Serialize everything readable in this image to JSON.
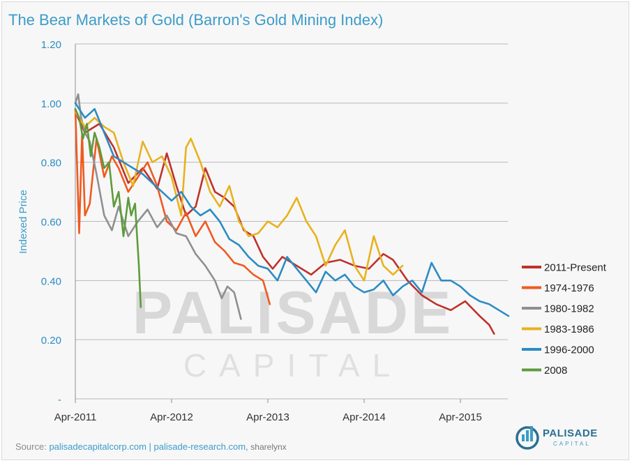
{
  "chart_data": {
    "type": "line",
    "title": "The Bear Markets of Gold (Barron's Gold Mining Index)",
    "ylabel": "Indexed Price",
    "xlabel": "",
    "ylim": [
      0,
      1.2
    ],
    "xlim": [
      0,
      4.6
    ],
    "y_ticks": [
      "1.20",
      "1.00",
      "0.80",
      "0.60",
      "0.40",
      "0.20",
      "-"
    ],
    "y_tick_values": [
      1.2,
      1.0,
      0.8,
      0.6,
      0.4,
      0.2,
      0.0
    ],
    "x_ticks": [
      "Apr-2011",
      "Apr-2012",
      "Apr-2013",
      "Apr-2014",
      "Apr-2015"
    ],
    "x_tick_values": [
      0,
      1,
      2,
      3,
      4
    ],
    "legend_position": "right",
    "watermark": "PALISADE CAPITAL",
    "series": [
      {
        "name": "2011-Present",
        "color": "#c0312b",
        "x": [
          0,
          0.1,
          0.25,
          0.4,
          0.55,
          0.7,
          0.85,
          0.95,
          1.05,
          1.15,
          1.25,
          1.35,
          1.45,
          1.55,
          1.65,
          1.75,
          1.85,
          1.95,
          2.05,
          2.15,
          2.3,
          2.45,
          2.6,
          2.75,
          2.9,
          3.05,
          3.2,
          3.3,
          3.45,
          3.6,
          3.75,
          3.9,
          4.05,
          4.2,
          4.3,
          4.35
        ],
        "y": [
          0.97,
          0.9,
          0.93,
          0.85,
          0.73,
          0.78,
          0.71,
          0.83,
          0.72,
          0.62,
          0.65,
          0.78,
          0.7,
          0.68,
          0.65,
          0.57,
          0.55,
          0.48,
          0.44,
          0.48,
          0.45,
          0.42,
          0.46,
          0.47,
          0.45,
          0.44,
          0.49,
          0.47,
          0.4,
          0.35,
          0.32,
          0.3,
          0.33,
          0.28,
          0.25,
          0.22
        ]
      },
      {
        "name": "1974-1976",
        "color": "#ef5a1f",
        "x": [
          0,
          0.04,
          0.07,
          0.1,
          0.15,
          0.22,
          0.3,
          0.38,
          0.45,
          0.55,
          0.65,
          0.75,
          0.85,
          0.95,
          1.05,
          1.15,
          1.25,
          1.35,
          1.45,
          1.55,
          1.65,
          1.75,
          1.85,
          1.95,
          2.02
        ],
        "y": [
          0.98,
          0.56,
          0.9,
          0.62,
          0.66,
          0.88,
          0.75,
          0.82,
          0.78,
          0.7,
          0.75,
          0.8,
          0.72,
          0.6,
          0.57,
          0.63,
          0.55,
          0.6,
          0.53,
          0.5,
          0.46,
          0.45,
          0.42,
          0.4,
          0.32
        ]
      },
      {
        "name": "1980-1982",
        "color": "#8f8f8f",
        "x": [
          0,
          0.03,
          0.06,
          0.1,
          0.15,
          0.22,
          0.3,
          0.38,
          0.45,
          0.55,
          0.65,
          0.75,
          0.85,
          0.95,
          1.05,
          1.15,
          1.25,
          1.35,
          1.45,
          1.52,
          1.58,
          1.65,
          1.72
        ],
        "y": [
          1.0,
          1.03,
          0.95,
          0.9,
          0.87,
          0.76,
          0.62,
          0.57,
          0.65,
          0.55,
          0.6,
          0.64,
          0.58,
          0.62,
          0.56,
          0.55,
          0.49,
          0.45,
          0.4,
          0.34,
          0.38,
          0.36,
          0.27
        ]
      },
      {
        "name": "1983-1986",
        "color": "#e8b21e",
        "x": [
          0,
          0.1,
          0.2,
          0.3,
          0.4,
          0.5,
          0.6,
          0.7,
          0.8,
          0.9,
          1.0,
          1.1,
          1.15,
          1.2,
          1.3,
          1.4,
          1.5,
          1.6,
          1.7,
          1.8,
          1.9,
          2.0,
          2.1,
          2.2,
          2.3,
          2.4,
          2.5,
          2.6,
          2.7,
          2.8,
          2.9,
          3.0,
          3.1,
          3.2,
          3.3,
          3.4
        ],
        "y": [
          0.97,
          0.92,
          0.95,
          0.92,
          0.9,
          0.8,
          0.72,
          0.87,
          0.8,
          0.82,
          0.75,
          0.62,
          0.85,
          0.88,
          0.8,
          0.7,
          0.65,
          0.72,
          0.6,
          0.55,
          0.56,
          0.6,
          0.58,
          0.62,
          0.68,
          0.6,
          0.55,
          0.45,
          0.52,
          0.57,
          0.45,
          0.4,
          0.55,
          0.45,
          0.42,
          0.45
        ]
      },
      {
        "name": "1996-2000",
        "color": "#2b8cc4",
        "x": [
          0,
          0.1,
          0.2,
          0.3,
          0.4,
          0.5,
          0.6,
          0.7,
          0.8,
          0.9,
          1.0,
          1.1,
          1.2,
          1.3,
          1.4,
          1.5,
          1.6,
          1.7,
          1.8,
          1.9,
          2.0,
          2.1,
          2.2,
          2.3,
          2.4,
          2.5,
          2.6,
          2.7,
          2.8,
          2.9,
          3.0,
          3.1,
          3.2,
          3.3,
          3.4,
          3.5,
          3.6,
          3.7,
          3.8,
          3.9,
          4.0,
          4.1,
          4.2,
          4.3,
          4.4,
          4.5
        ],
        "y": [
          1.0,
          0.95,
          0.98,
          0.9,
          0.82,
          0.8,
          0.78,
          0.76,
          0.73,
          0.7,
          0.67,
          0.7,
          0.65,
          0.62,
          0.64,
          0.6,
          0.54,
          0.52,
          0.48,
          0.45,
          0.44,
          0.4,
          0.48,
          0.44,
          0.4,
          0.36,
          0.43,
          0.4,
          0.42,
          0.38,
          0.36,
          0.37,
          0.4,
          0.35,
          0.38,
          0.4,
          0.36,
          0.46,
          0.4,
          0.4,
          0.38,
          0.35,
          0.33,
          0.32,
          0.3,
          0.28
        ]
      },
      {
        "name": "2008",
        "color": "#5e9b3c",
        "x": [
          0,
          0.04,
          0.08,
          0.12,
          0.16,
          0.2,
          0.25,
          0.3,
          0.35,
          0.4,
          0.45,
          0.5,
          0.55,
          0.58,
          0.62,
          0.66,
          0.68
        ],
        "y": [
          0.98,
          0.95,
          0.88,
          0.93,
          0.82,
          0.9,
          0.85,
          0.78,
          0.8,
          0.65,
          0.7,
          0.55,
          0.68,
          0.62,
          0.66,
          0.45,
          0.31
        ]
      }
    ]
  },
  "source": {
    "prefix": "Source:",
    "link1": "palisadecapitalcorp.com",
    "separator": "|",
    "link2": "palisade-research.com,",
    "credit": "sharelynx"
  },
  "logo": {
    "name": "PALISADE",
    "sub": "CAPITAL"
  }
}
